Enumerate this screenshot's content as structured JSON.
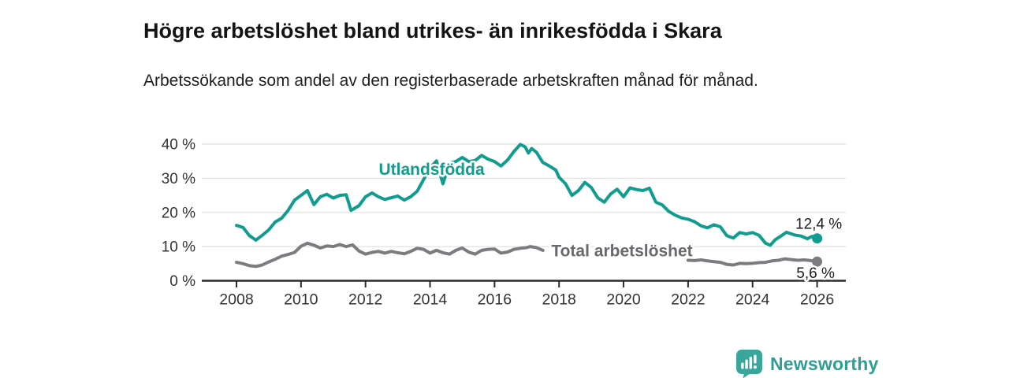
{
  "header": {
    "title": "Högre arbetslöshet bland utrikes- än inrikesfödda i Skara",
    "subtitle": "Arbetssökande som andel av den registerbaserade arbetskraften månad för månad."
  },
  "footer": {
    "brand": "Newsworthy",
    "logo_icon": "bar-chart-speech-bubble-icon",
    "brand_color": "#2f9d93"
  },
  "chart_data": {
    "type": "line",
    "title": "Högre arbetslöshet bland utrikes- än inrikesfödda i Skara",
    "xlabel": "",
    "ylabel": "",
    "unit": "%",
    "grid": "horizontal-only",
    "grid_color": "#e2e2e2",
    "axis_color": "#2b2b2b",
    "tick_label_color": "#333333",
    "annotation_color": "#1c1c1c",
    "xlim": [
      2006.9,
      2026.9
    ],
    "ylim": [
      0,
      43
    ],
    "x_ticks": [
      2008,
      2010,
      2012,
      2014,
      2016,
      2018,
      2020,
      2022,
      2024,
      2026
    ],
    "x_tick_labels": [
      "2008",
      "2010",
      "2012",
      "2014",
      "2016",
      "2018",
      "2020",
      "2022",
      "2024",
      "2026"
    ],
    "y_ticks": [
      0,
      10,
      20,
      30,
      40
    ],
    "y_tick_labels": [
      "0 %",
      "10 %",
      "20 %",
      "30 %",
      "40 %"
    ],
    "series": [
      {
        "id": "utlandsfodda",
        "name": "Utlandsfödda",
        "color": "#119c90",
        "label": {
          "text": "Utlandsfödda",
          "x": 2014.05,
          "y": 32.6
        },
        "end_label": "12,4 %",
        "end_label_dx": 2,
        "end_label_dy": -12,
        "end_value": 12.4,
        "segments": [
          [
            [
              2008.0,
              16.2
            ],
            [
              2008.2,
              15.6
            ],
            [
              2008.4,
              13.2
            ],
            [
              2008.6,
              11.9
            ],
            [
              2008.8,
              13.3
            ],
            [
              2009.0,
              14.9
            ],
            [
              2009.2,
              17.2
            ],
            [
              2009.4,
              18.3
            ],
            [
              2009.6,
              20.6
            ],
            [
              2009.8,
              23.6
            ],
            [
              2010.0,
              25.0
            ],
            [
              2010.2,
              26.4
            ],
            [
              2010.4,
              22.3
            ],
            [
              2010.6,
              24.6
            ],
            [
              2010.8,
              25.3
            ],
            [
              2011.0,
              24.2
            ],
            [
              2011.2,
              25.0
            ],
            [
              2011.4,
              25.2
            ],
            [
              2011.55,
              20.6
            ],
            [
              2011.8,
              22.0
            ],
            [
              2012.0,
              24.6
            ],
            [
              2012.2,
              25.7
            ],
            [
              2012.4,
              24.6
            ],
            [
              2012.6,
              23.8
            ],
            [
              2012.8,
              24.3
            ],
            [
              2013.0,
              24.8
            ],
            [
              2013.2,
              23.6
            ],
            [
              2013.4,
              24.6
            ],
            [
              2013.6,
              26.2
            ],
            [
              2013.8,
              29.6
            ],
            [
              2014.0,
              33.0
            ],
            [
              2014.2,
              35.1
            ],
            [
              2014.4,
              28.4
            ],
            [
              2014.6,
              34.4
            ],
            [
              2014.8,
              34.9
            ],
            [
              2015.0,
              36.1
            ],
            [
              2015.2,
              34.9
            ],
            [
              2015.4,
              35.2
            ],
            [
              2015.6,
              36.7
            ],
            [
              2015.8,
              35.6
            ],
            [
              2016.0,
              34.9
            ],
            [
              2016.2,
              33.6
            ],
            [
              2016.4,
              35.3
            ],
            [
              2016.6,
              37.8
            ],
            [
              2016.8,
              39.9
            ],
            [
              2016.95,
              39.2
            ],
            [
              2017.05,
              37.4
            ],
            [
              2017.15,
              38.7
            ],
            [
              2017.3,
              37.6
            ],
            [
              2017.5,
              34.6
            ],
            [
              2017.7,
              33.6
            ],
            [
              2017.9,
              32.4
            ],
            [
              2018.0,
              30.3
            ],
            [
              2018.2,
              28.4
            ],
            [
              2018.4,
              25.0
            ],
            [
              2018.6,
              26.4
            ],
            [
              2018.8,
              28.8
            ],
            [
              2019.0,
              27.3
            ],
            [
              2019.2,
              24.3
            ],
            [
              2019.4,
              23.0
            ],
            [
              2019.6,
              25.4
            ],
            [
              2019.8,
              26.8
            ],
            [
              2020.0,
              24.6
            ],
            [
              2020.2,
              27.2
            ],
            [
              2020.4,
              26.7
            ],
            [
              2020.6,
              26.4
            ],
            [
              2020.8,
              27.1
            ],
            [
              2021.0,
              23.0
            ],
            [
              2021.2,
              22.2
            ],
            [
              2021.4,
              20.3
            ],
            [
              2021.6,
              19.2
            ],
            [
              2021.8,
              18.4
            ],
            [
              2022.0,
              18.0
            ],
            [
              2022.2,
              17.3
            ],
            [
              2022.4,
              16.1
            ],
            [
              2022.6,
              15.5
            ],
            [
              2022.8,
              16.4
            ],
            [
              2023.0,
              15.8
            ],
            [
              2023.2,
              13.2
            ],
            [
              2023.4,
              12.5
            ],
            [
              2023.6,
              14.1
            ],
            [
              2023.8,
              13.7
            ],
            [
              2024.0,
              14.1
            ],
            [
              2024.2,
              13.3
            ],
            [
              2024.4,
              11.0
            ],
            [
              2024.55,
              10.4
            ],
            [
              2024.7,
              12.0
            ],
            [
              2024.9,
              13.2
            ],
            [
              2025.05,
              14.2
            ],
            [
              2025.3,
              13.4
            ],
            [
              2025.5,
              13.1
            ],
            [
              2025.7,
              12.3
            ],
            [
              2025.85,
              13.0
            ],
            [
              2026.0,
              12.4
            ]
          ]
        ]
      },
      {
        "id": "total-arbetsloshet",
        "name": "Total arbetslöshet",
        "color": "#7c7c80",
        "label_color": "#69696d",
        "label": {
          "text": "Total arbetslöshet",
          "x": 2019.95,
          "y": 8.8
        },
        "end_label": "5,6 %",
        "end_label_dx": -2,
        "end_label_dy": 21,
        "end_value": 5.6,
        "segments": [
          [
            [
              2008.0,
              5.4
            ],
            [
              2008.2,
              5.0
            ],
            [
              2008.4,
              4.4
            ],
            [
              2008.6,
              4.2
            ],
            [
              2008.8,
              4.6
            ],
            [
              2009.0,
              5.5
            ],
            [
              2009.2,
              6.3
            ],
            [
              2009.4,
              7.2
            ],
            [
              2009.6,
              7.7
            ],
            [
              2009.8,
              8.3
            ],
            [
              2010.0,
              10.1
            ],
            [
              2010.2,
              11.0
            ],
            [
              2010.4,
              10.4
            ],
            [
              2010.6,
              9.6
            ],
            [
              2010.8,
              10.2
            ],
            [
              2011.0,
              10.0
            ],
            [
              2011.2,
              10.6
            ],
            [
              2011.4,
              10.0
            ],
            [
              2011.6,
              10.5
            ],
            [
              2011.8,
              8.7
            ],
            [
              2012.0,
              7.8
            ],
            [
              2012.2,
              8.3
            ],
            [
              2012.4,
              8.6
            ],
            [
              2012.6,
              8.1
            ],
            [
              2012.8,
              8.6
            ],
            [
              2013.0,
              8.2
            ],
            [
              2013.2,
              7.9
            ],
            [
              2013.4,
              8.6
            ],
            [
              2013.6,
              9.5
            ],
            [
              2013.8,
              9.2
            ],
            [
              2014.0,
              8.1
            ],
            [
              2014.2,
              8.9
            ],
            [
              2014.4,
              8.2
            ],
            [
              2014.6,
              7.8
            ],
            [
              2014.8,
              8.9
            ],
            [
              2015.0,
              9.6
            ],
            [
              2015.2,
              8.4
            ],
            [
              2015.4,
              7.8
            ],
            [
              2015.6,
              8.9
            ],
            [
              2015.8,
              9.2
            ],
            [
              2016.0,
              9.3
            ],
            [
              2016.2,
              8.1
            ],
            [
              2016.4,
              8.4
            ],
            [
              2016.6,
              9.2
            ],
            [
              2016.8,
              9.5
            ],
            [
              2017.0,
              9.7
            ],
            [
              2017.1,
              10.0
            ],
            [
              2017.3,
              9.7
            ],
            [
              2017.5,
              8.9
            ]
          ],
          [
            [
              2022.0,
              6.0
            ],
            [
              2022.2,
              5.9
            ],
            [
              2022.4,
              6.1
            ],
            [
              2022.6,
              5.8
            ],
            [
              2022.8,
              5.6
            ],
            [
              2023.0,
              5.4
            ],
            [
              2023.2,
              4.8
            ],
            [
              2023.4,
              4.6
            ],
            [
              2023.6,
              5.1
            ],
            [
              2023.8,
              5.0
            ],
            [
              2024.0,
              5.1
            ],
            [
              2024.2,
              5.3
            ],
            [
              2024.4,
              5.4
            ],
            [
              2024.6,
              5.8
            ],
            [
              2024.8,
              6.0
            ],
            [
              2025.0,
              6.4
            ],
            [
              2025.2,
              6.2
            ],
            [
              2025.4,
              6.0
            ],
            [
              2025.6,
              6.1
            ],
            [
              2025.8,
              5.9
            ],
            [
              2026.0,
              5.6
            ]
          ]
        ]
      }
    ]
  }
}
